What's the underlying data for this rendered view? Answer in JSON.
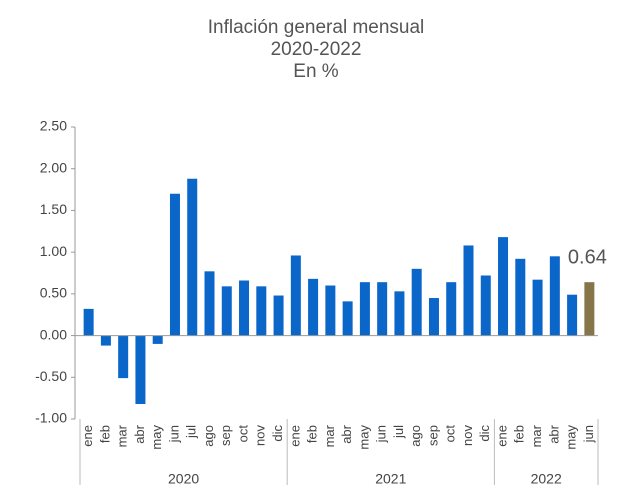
{
  "chart_data": {
    "type": "bar",
    "title": [
      "Inflación general mensual",
      "2020-2022",
      "En  %"
    ],
    "categories": [
      "ene",
      "feb",
      "mar",
      "abr",
      "may",
      "jun",
      "jul",
      "ago",
      "sep",
      "oct",
      "nov",
      "dic",
      "ene",
      "feb",
      "mar",
      "abr",
      "may",
      "jun",
      "jul",
      "ago",
      "sep",
      "oct",
      "nov",
      "dic",
      "ene",
      "feb",
      "mar",
      "abr",
      "may",
      "jun"
    ],
    "x_groups": [
      {
        "label": "2020",
        "size": 12
      },
      {
        "label": "2021",
        "size": 12
      },
      {
        "label": "2022",
        "size": 6
      }
    ],
    "values": [
      0.32,
      -0.12,
      -0.51,
      -0.82,
      -0.1,
      1.7,
      1.88,
      0.77,
      0.59,
      0.66,
      0.59,
      0.48,
      0.96,
      0.68,
      0.6,
      0.41,
      0.64,
      0.64,
      0.53,
      0.8,
      0.45,
      0.64,
      1.08,
      0.72,
      1.18,
      0.92,
      0.67,
      0.95,
      0.49,
      0.64
    ],
    "colors": [
      "#0a66c8",
      "#0a66c8",
      "#0a66c8",
      "#0a66c8",
      "#0a66c8",
      "#0a66c8",
      "#0a66c8",
      "#0a66c8",
      "#0a66c8",
      "#0a66c8",
      "#0a66c8",
      "#0a66c8",
      "#0a66c8",
      "#0a66c8",
      "#0a66c8",
      "#0a66c8",
      "#0a66c8",
      "#0a66c8",
      "#0a66c8",
      "#0a66c8",
      "#0a66c8",
      "#0a66c8",
      "#0a66c8",
      "#0a66c8",
      "#0a66c8",
      "#0a66c8",
      "#0a66c8",
      "#0a66c8",
      "#0a66c8",
      "#857548"
    ],
    "labeled_index": 29,
    "ylim": [
      -1,
      2.5
    ],
    "yticks": [
      {
        "value": -1,
        "label": "-1.00"
      },
      {
        "value": -0.5,
        "label": "-0.50"
      },
      {
        "value": 0,
        "label": "0.00"
      },
      {
        "value": 0.5,
        "label": "0.50"
      },
      {
        "value": 1,
        "label": "1.00"
      },
      {
        "value": 1.5,
        "label": "1.50"
      },
      {
        "value": 2,
        "label": "2.00"
      },
      {
        "value": 2.5,
        "label": "2.50"
      }
    ],
    "grid": false
  }
}
